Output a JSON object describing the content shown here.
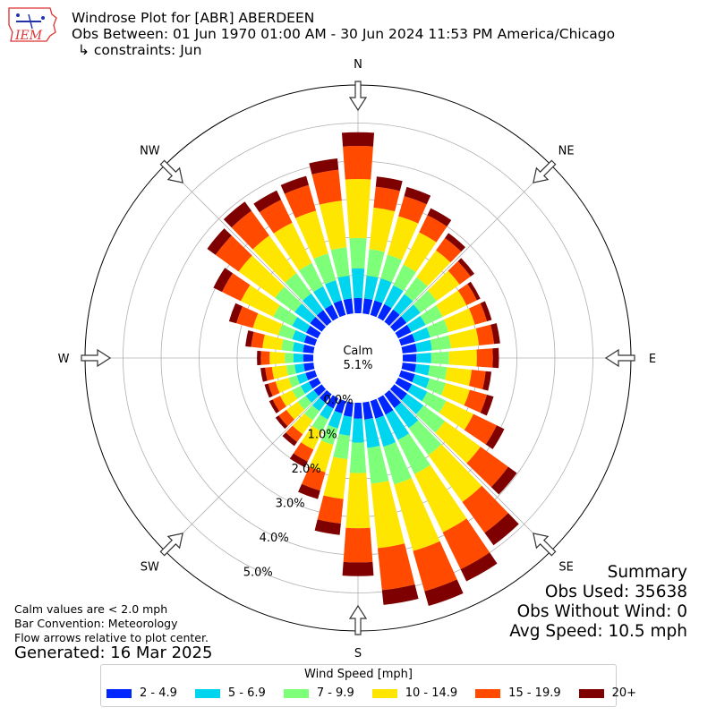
{
  "header": {
    "line1": "Windrose Plot for [ABR] ABERDEEN",
    "line2": "Obs Between: 01 Jun 1970 01:00 AM - 30 Jun 2024 11:53 PM America/Chicago",
    "line3": "↳ constraints: Jun",
    "logo_text": "IEM"
  },
  "notes": {
    "line1": "Calm values are < 2.0 mph",
    "line2": "Bar Convention: Meteorology",
    "line3": "Flow arrows relative to plot center.",
    "generated": "Generated: 16 Mar 2025"
  },
  "summary": {
    "title": "Summary",
    "obs_used": "Obs Used: 35638",
    "obs_without_wind": "Obs Without Wind: 0",
    "avg_speed": "Avg Speed: 10.5 mph"
  },
  "colors": {
    "bins": [
      "#0026ff",
      "#00d5f0",
      "#7dff7a",
      "#ffe600",
      "#ff4a00",
      "#7f0000"
    ],
    "grid": "#b0b0b0"
  },
  "chart_data": {
    "type": "windrose",
    "legend_title": "Wind Speed [mph]",
    "speed_bins": [
      "2 - 4.9",
      "5 - 6.9",
      "7 - 9.9",
      "10 - 14.9",
      "15 - 19.9",
      "20+"
    ],
    "calm": {
      "label": "Calm",
      "value": "5.1%"
    },
    "ring_labels": [
      "0.0%",
      "1.0%",
      "2.0%",
      "3.0%",
      "4.0%",
      "5.0%"
    ],
    "rmax": 6.0,
    "compass": [
      "N",
      "NE",
      "E",
      "SE",
      "S",
      "SW",
      "W",
      "NW"
    ],
    "directions": [
      0,
      10,
      20,
      30,
      40,
      50,
      60,
      70,
      80,
      90,
      100,
      110,
      120,
      130,
      140,
      150,
      160,
      170,
      180,
      190,
      200,
      210,
      220,
      230,
      240,
      250,
      260,
      270,
      280,
      290,
      300,
      310,
      320,
      330,
      340,
      350
    ],
    "bin_totals": [
      [
        0.4,
        1.18,
        1.98,
        3.53,
        4.4,
        4.76
      ],
      [
        0.4,
        1.0,
        1.7,
        2.8,
        3.35,
        3.62
      ],
      [
        0.4,
        1.0,
        1.65,
        2.7,
        3.25,
        3.5
      ],
      [
        0.4,
        0.95,
        1.55,
        2.5,
        3.0,
        3.2
      ],
      [
        0.4,
        0.9,
        1.45,
        2.32,
        2.72,
        2.88
      ],
      [
        0.4,
        0.85,
        1.38,
        2.12,
        2.48,
        2.6
      ],
      [
        0.38,
        0.8,
        1.3,
        2.0,
        2.3,
        2.4
      ],
      [
        0.38,
        0.8,
        1.3,
        2.02,
        2.35,
        2.48
      ],
      [
        0.38,
        0.78,
        1.28,
        2.02,
        2.42,
        2.58
      ],
      [
        0.36,
        0.75,
        1.22,
        1.95,
        2.37,
        2.53
      ],
      [
        0.36,
        0.72,
        1.18,
        1.83,
        2.2,
        2.35
      ],
      [
        0.38,
        0.78,
        1.22,
        1.88,
        2.35,
        2.53
      ],
      [
        0.4,
        0.85,
        1.4,
        2.2,
        2.88,
        3.1
      ],
      [
        0.42,
        0.95,
        1.65,
        2.8,
        3.7,
        3.98
      ],
      [
        0.45,
        1.1,
        1.98,
        3.5,
        4.5,
        4.9
      ],
      [
        0.48,
        1.22,
        2.22,
        3.92,
        5.0,
        5.35
      ],
      [
        0.48,
        1.25,
        2.28,
        4.1,
        5.2,
        5.6
      ],
      [
        0.45,
        1.2,
        2.15,
        3.85,
        4.96,
        5.35
      ],
      [
        0.42,
        1.05,
        1.85,
        3.3,
        4.2,
        4.56
      ],
      [
        0.38,
        0.88,
        1.5,
        2.55,
        3.2,
        3.5
      ],
      [
        0.34,
        0.75,
        1.2,
        1.95,
        2.45,
        2.68
      ],
      [
        0.3,
        0.62,
        0.98,
        1.5,
        1.85,
        2.02
      ],
      [
        0.28,
        0.55,
        0.85,
        1.3,
        1.55,
        1.68
      ],
      [
        0.26,
        0.52,
        0.78,
        1.15,
        1.4,
        1.5
      ],
      [
        0.26,
        0.5,
        0.75,
        1.1,
        1.32,
        1.42
      ],
      [
        0.26,
        0.5,
        0.72,
        1.08,
        1.28,
        1.38
      ],
      [
        0.26,
        0.5,
        0.72,
        1.1,
        1.28,
        1.4
      ],
      [
        0.26,
        0.52,
        0.75,
        1.15,
        1.38,
        1.48
      ],
      [
        0.28,
        0.55,
        0.85,
        1.35,
        1.65,
        1.8
      ],
      [
        0.3,
        0.62,
        1.0,
        1.7,
        2.15,
        2.35
      ],
      [
        0.34,
        0.75,
        1.3,
        2.25,
        2.8,
        3.05
      ],
      [
        0.38,
        0.88,
        1.52,
        2.7,
        3.45,
        3.72
      ],
      [
        0.38,
        0.92,
        1.58,
        2.8,
        3.6,
        3.9
      ],
      [
        0.38,
        0.92,
        1.6,
        2.78,
        3.45,
        3.72
      ],
      [
        0.4,
        0.95,
        1.68,
        2.85,
        3.55,
        3.8
      ],
      [
        0.4,
        1.0,
        1.75,
        2.98,
        3.8,
        4.1
      ]
    ]
  }
}
